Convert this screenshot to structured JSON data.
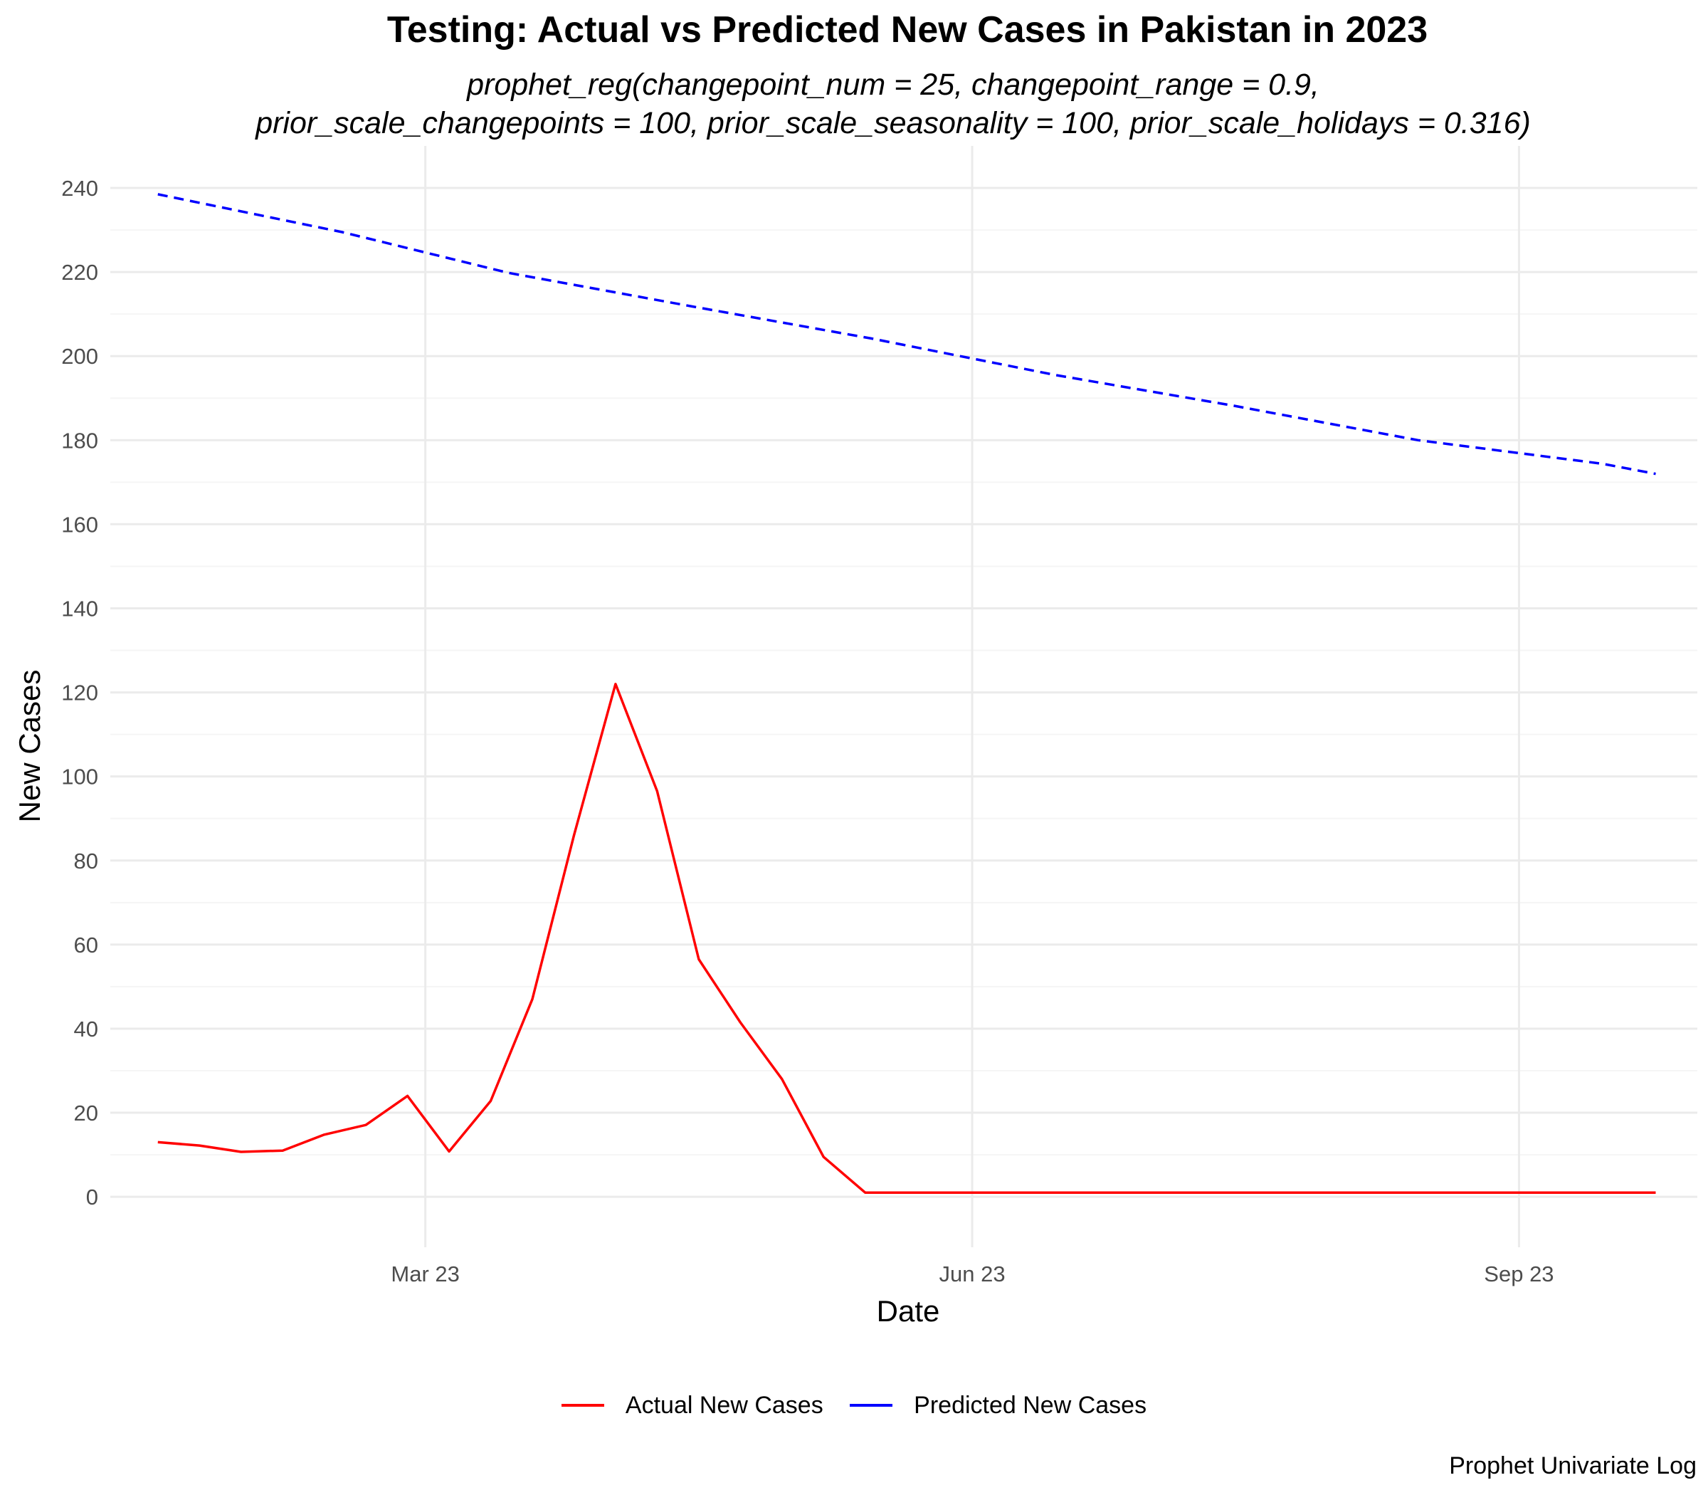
{
  "chart_data": {
    "type": "line",
    "title": "Testing: Actual vs Predicted New Cases in Pakistan in 2023",
    "subtitle": [
      "prophet_reg(changepoint_num = 25, changepoint_range = 0.9,",
      "prior_scale_changepoints = 100, prior_scale_seasonality = 100, prior_scale_holidays = 0.316)"
    ],
    "xlabel": "Date",
    "ylabel": "New Cases",
    "caption": "Prophet Univariate Log",
    "x_range": [
      "2023-01-07",
      "2023-10-01"
    ],
    "ylim": [
      -12,
      250
    ],
    "yticks": [
      0,
      20,
      40,
      60,
      80,
      100,
      120,
      140,
      160,
      180,
      200,
      220,
      240
    ],
    "xticks": [
      {
        "date": "2023-03-01",
        "label": "Mar 23"
      },
      {
        "date": "2023-06-01",
        "label": "Jun 23"
      },
      {
        "date": "2023-09-01",
        "label": "Sep 23"
      }
    ],
    "grid": true,
    "legend_position": "bottom",
    "series": [
      {
        "name": "Actual New Cases",
        "color": "#ff0000",
        "style": "solid",
        "points": [
          [
            "2023-01-15",
            13
          ],
          [
            "2023-01-22",
            12.2
          ],
          [
            "2023-01-29",
            10.7
          ],
          [
            "2023-02-05",
            11
          ],
          [
            "2023-02-12",
            14.8
          ],
          [
            "2023-02-19",
            17.1
          ],
          [
            "2023-02-26",
            24
          ],
          [
            "2023-03-05",
            10.8
          ],
          [
            "2023-03-12",
            22.8
          ],
          [
            "2023-03-19",
            47
          ],
          [
            "2023-03-26",
            86
          ],
          [
            "2023-04-02",
            122
          ],
          [
            "2023-04-09",
            96.5
          ],
          [
            "2023-04-16",
            56.5
          ],
          [
            "2023-04-23",
            41.5
          ],
          [
            "2023-04-30",
            28
          ],
          [
            "2023-05-07",
            9.5
          ],
          [
            "2023-05-14",
            1
          ],
          [
            "2023-05-21",
            1
          ],
          [
            "2023-05-28",
            1
          ],
          [
            "2023-06-04",
            1
          ],
          [
            "2023-06-11",
            1
          ],
          [
            "2023-06-18",
            1
          ],
          [
            "2023-06-25",
            1
          ],
          [
            "2023-07-02",
            1
          ],
          [
            "2023-07-09",
            1
          ],
          [
            "2023-07-16",
            1
          ],
          [
            "2023-07-23",
            1
          ],
          [
            "2023-07-30",
            1
          ],
          [
            "2023-08-06",
            1
          ],
          [
            "2023-08-13",
            1
          ],
          [
            "2023-08-20",
            1
          ],
          [
            "2023-08-27",
            1
          ],
          [
            "2023-09-03",
            1
          ],
          [
            "2023-09-10",
            1
          ],
          [
            "2023-09-17",
            1
          ],
          [
            "2023-09-24",
            1
          ]
        ]
      },
      {
        "name": "Predicted New Cases",
        "color": "#0000ff",
        "style": "dashed",
        "points": [
          [
            "2023-01-15",
            238.5
          ],
          [
            "2023-02-15",
            229.5
          ],
          [
            "2023-03-15",
            219.8
          ],
          [
            "2023-04-15",
            211.8
          ],
          [
            "2023-05-15",
            204.2
          ],
          [
            "2023-06-15",
            195.5
          ],
          [
            "2023-07-15",
            188.2
          ],
          [
            "2023-08-15",
            180
          ],
          [
            "2023-09-15",
            174.4
          ],
          [
            "2023-09-24",
            172
          ]
        ]
      }
    ]
  }
}
